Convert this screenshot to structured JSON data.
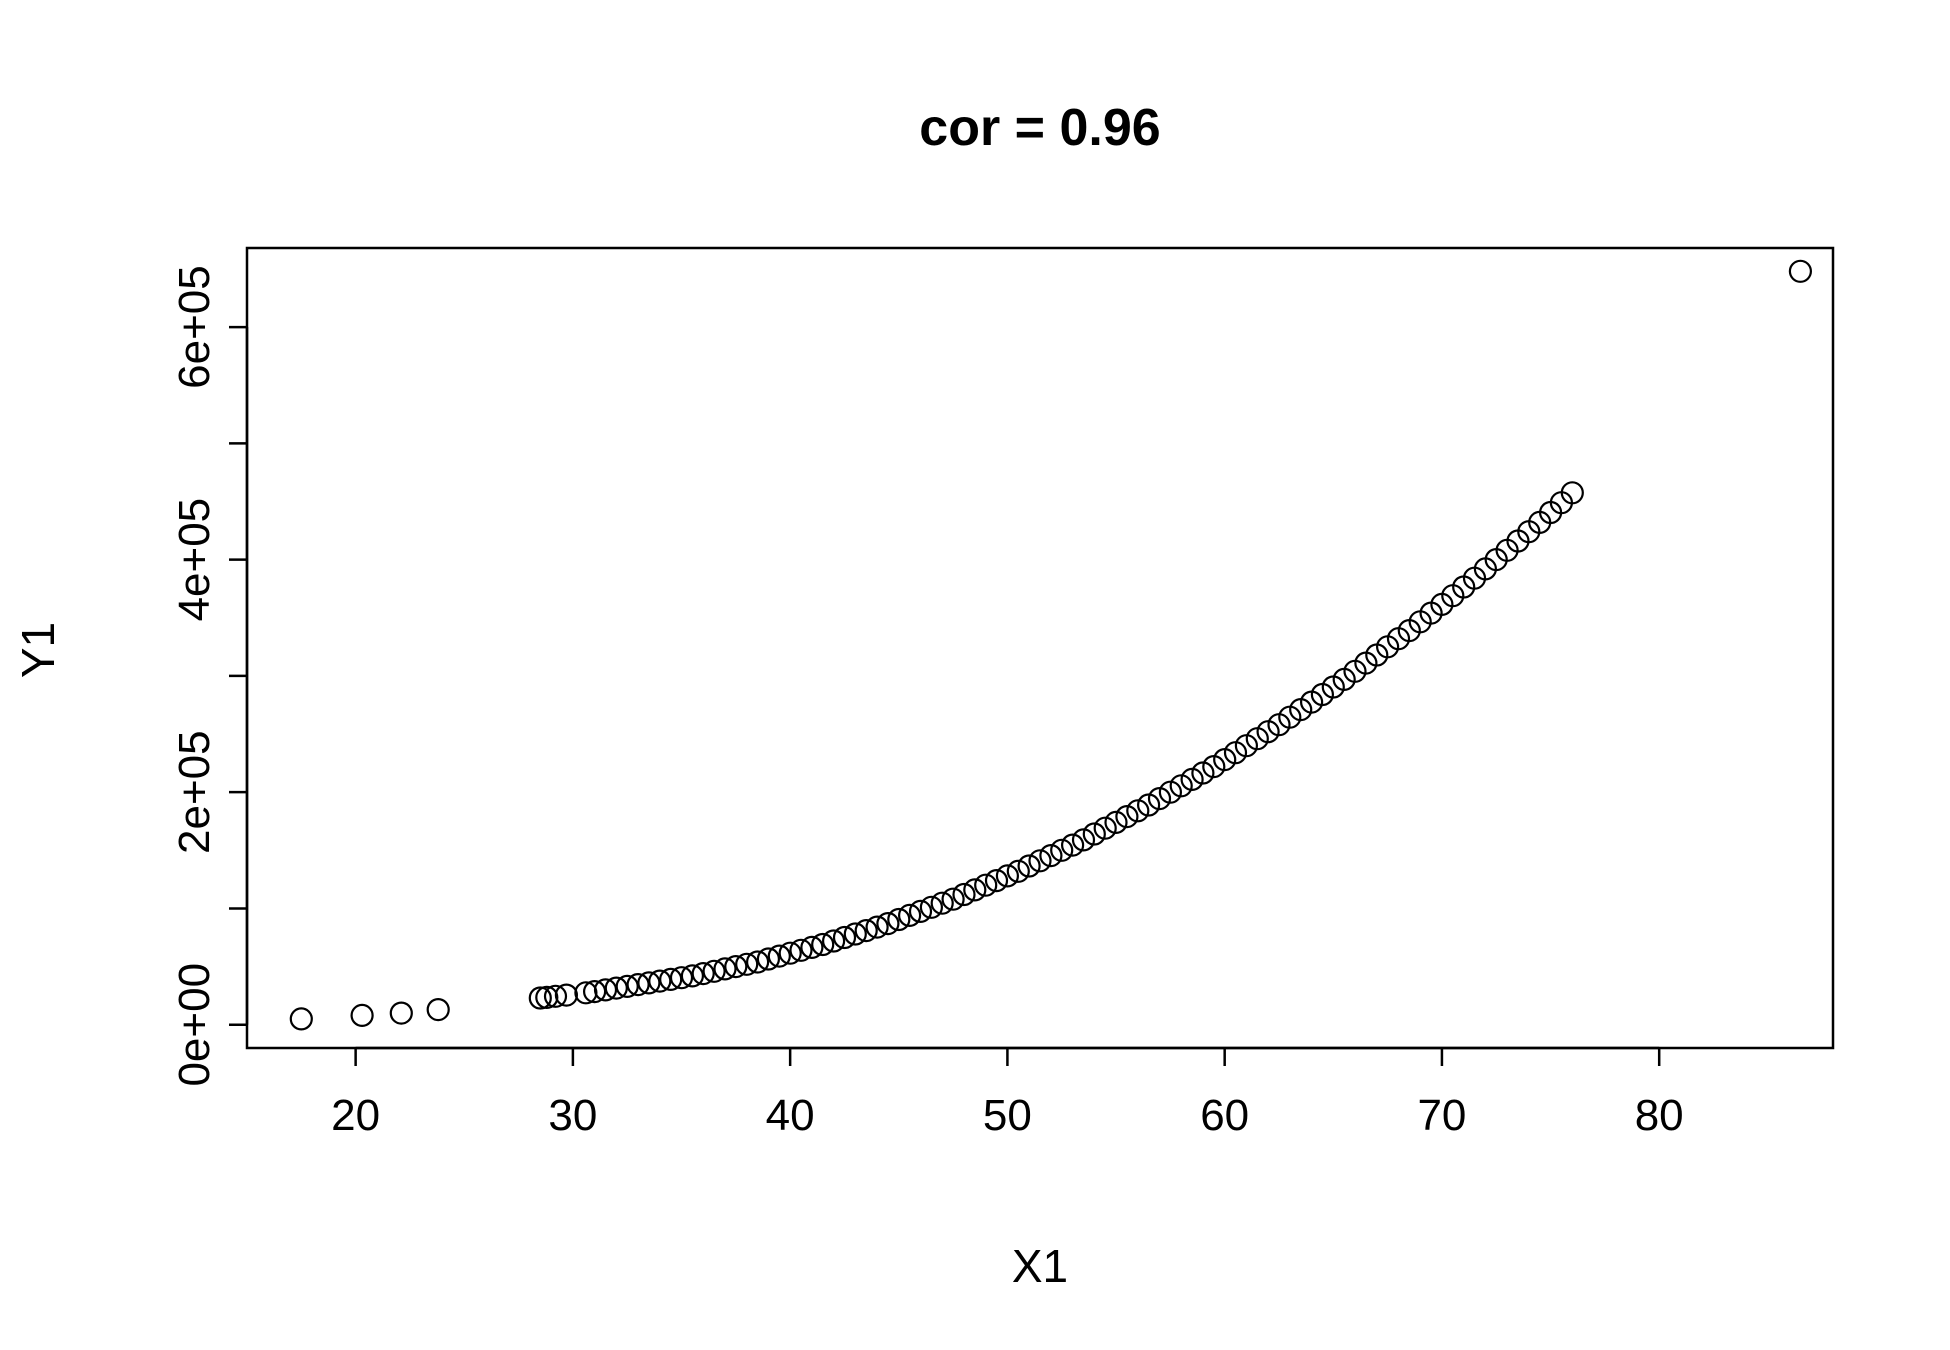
{
  "chart_data": {
    "type": "scatter",
    "title": "cor = 0.96",
    "xlabel": "X1",
    "ylabel": "Y1",
    "xlim": [
      15,
      88
    ],
    "ylim": [
      -20000,
      668000
    ],
    "x_ticks": [
      20,
      30,
      40,
      50,
      60,
      70,
      80
    ],
    "x_tick_labels": [
      "20",
      "30",
      "40",
      "50",
      "60",
      "70",
      "80"
    ],
    "y_ticks": [
      0,
      100000,
      200000,
      300000,
      400000,
      500000,
      600000
    ],
    "y_tick_labels": [
      "0e+00",
      "",
      "2e+05",
      "",
      "4e+05",
      "",
      "6e+05"
    ],
    "grid": false,
    "legend": "none",
    "marker": "open-circle",
    "points": [
      {
        "x": 17.5,
        "y": 5000
      },
      {
        "x": 20.3,
        "y": 8000
      },
      {
        "x": 22.1,
        "y": 10000
      },
      {
        "x": 23.8,
        "y": 13000
      },
      {
        "x": 28.5,
        "y": 23000
      },
      {
        "x": 28.8,
        "y": 23500
      },
      {
        "x": 29.2,
        "y": 24500
      },
      {
        "x": 29.7,
        "y": 25500
      },
      {
        "x": 30.6,
        "y": 27500
      },
      {
        "x": 31.0,
        "y": 28500
      },
      {
        "x": 31.5,
        "y": 30000
      },
      {
        "x": 32.0,
        "y": 31500
      },
      {
        "x": 32.5,
        "y": 33000
      },
      {
        "x": 33.0,
        "y": 34500
      },
      {
        "x": 33.5,
        "y": 36000
      },
      {
        "x": 34.0,
        "y": 37500
      },
      {
        "x": 34.5,
        "y": 39000
      },
      {
        "x": 35.0,
        "y": 40500
      },
      {
        "x": 35.5,
        "y": 42000
      },
      {
        "x": 36.0,
        "y": 44000
      },
      {
        "x": 36.5,
        "y": 46000
      },
      {
        "x": 37.0,
        "y": 48000
      },
      {
        "x": 37.5,
        "y": 50000
      },
      {
        "x": 38.0,
        "y": 52000
      },
      {
        "x": 38.5,
        "y": 54000
      },
      {
        "x": 39.0,
        "y": 56500
      },
      {
        "x": 39.5,
        "y": 59000
      },
      {
        "x": 40.0,
        "y": 61500
      },
      {
        "x": 40.5,
        "y": 64000
      },
      {
        "x": 41.0,
        "y": 66500
      },
      {
        "x": 41.5,
        "y": 69000
      },
      {
        "x": 42.0,
        "y": 72000
      },
      {
        "x": 42.5,
        "y": 75000
      },
      {
        "x": 43.0,
        "y": 78000
      },
      {
        "x": 43.5,
        "y": 81000
      },
      {
        "x": 44.0,
        "y": 84000
      },
      {
        "x": 44.5,
        "y": 87000
      },
      {
        "x": 45.0,
        "y": 90500
      },
      {
        "x": 45.5,
        "y": 94000
      },
      {
        "x": 46.0,
        "y": 97500
      },
      {
        "x": 46.5,
        "y": 101000
      },
      {
        "x": 47.0,
        "y": 104500
      },
      {
        "x": 47.5,
        "y": 108000
      },
      {
        "x": 48.0,
        "y": 112000
      },
      {
        "x": 48.5,
        "y": 116000
      },
      {
        "x": 49.0,
        "y": 120000
      },
      {
        "x": 49.5,
        "y": 124000
      },
      {
        "x": 50.0,
        "y": 128000
      },
      {
        "x": 50.5,
        "y": 132000
      },
      {
        "x": 51.0,
        "y": 136500
      },
      {
        "x": 51.5,
        "y": 141000
      },
      {
        "x": 52.0,
        "y": 145500
      },
      {
        "x": 52.5,
        "y": 150000
      },
      {
        "x": 53.0,
        "y": 154500
      },
      {
        "x": 53.5,
        "y": 159000
      },
      {
        "x": 54.0,
        "y": 164000
      },
      {
        "x": 54.5,
        "y": 169000
      },
      {
        "x": 55.0,
        "y": 174000
      },
      {
        "x": 55.5,
        "y": 179000
      },
      {
        "x": 56.0,
        "y": 184000
      },
      {
        "x": 56.5,
        "y": 189000
      },
      {
        "x": 57.0,
        "y": 194500
      },
      {
        "x": 57.5,
        "y": 200000
      },
      {
        "x": 58.0,
        "y": 205500
      },
      {
        "x": 58.5,
        "y": 211000
      },
      {
        "x": 59.0,
        "y": 216500
      },
      {
        "x": 59.5,
        "y": 222000
      },
      {
        "x": 60.0,
        "y": 228000
      },
      {
        "x": 60.5,
        "y": 234000
      },
      {
        "x": 61.0,
        "y": 240000
      },
      {
        "x": 61.5,
        "y": 246000
      },
      {
        "x": 62.0,
        "y": 252000
      },
      {
        "x": 62.5,
        "y": 258000
      },
      {
        "x": 63.0,
        "y": 264500
      },
      {
        "x": 63.5,
        "y": 271000
      },
      {
        "x": 64.0,
        "y": 277500
      },
      {
        "x": 64.5,
        "y": 284000
      },
      {
        "x": 65.0,
        "y": 290500
      },
      {
        "x": 65.5,
        "y": 297000
      },
      {
        "x": 66.0,
        "y": 304000
      },
      {
        "x": 66.5,
        "y": 311000
      },
      {
        "x": 67.0,
        "y": 318000
      },
      {
        "x": 67.5,
        "y": 325000
      },
      {
        "x": 68.0,
        "y": 332000
      },
      {
        "x": 68.5,
        "y": 339000
      },
      {
        "x": 69.0,
        "y": 346500
      },
      {
        "x": 69.5,
        "y": 354000
      },
      {
        "x": 70.0,
        "y": 361500
      },
      {
        "x": 70.5,
        "y": 369000
      },
      {
        "x": 71.0,
        "y": 376500
      },
      {
        "x": 71.5,
        "y": 384000
      },
      {
        "x": 72.0,
        "y": 392000
      },
      {
        "x": 72.5,
        "y": 400000
      },
      {
        "x": 73.0,
        "y": 408000
      },
      {
        "x": 73.5,
        "y": 416000
      },
      {
        "x": 74.0,
        "y": 424000
      },
      {
        "x": 74.5,
        "y": 432000
      },
      {
        "x": 75.0,
        "y": 440500
      },
      {
        "x": 75.5,
        "y": 449000
      },
      {
        "x": 76.0,
        "y": 457500
      },
      {
        "x": 86.5,
        "y": 648000
      }
    ]
  }
}
